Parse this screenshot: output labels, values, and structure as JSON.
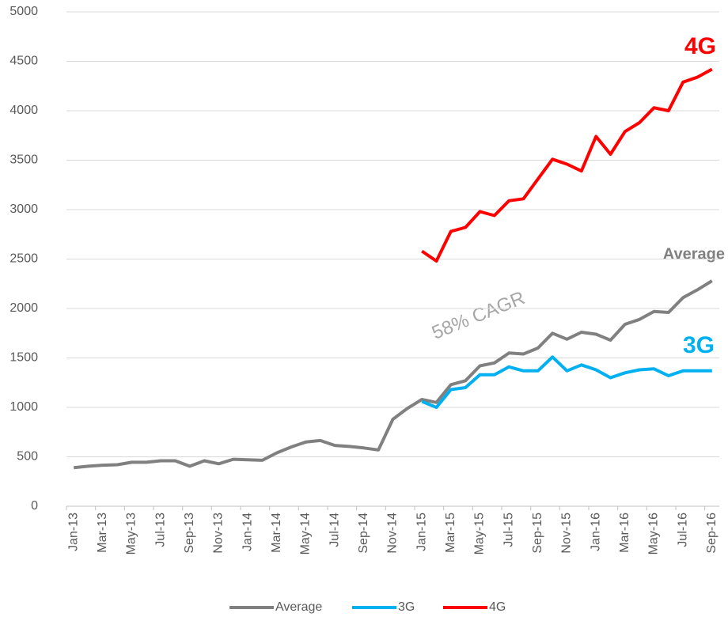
{
  "chart_data": {
    "type": "line",
    "categories": [
      "Jan-13",
      null,
      "Mar-13",
      null,
      "May-13",
      null,
      "Jul-13",
      null,
      "Sep-13",
      null,
      "Nov-13",
      null,
      "Jan-14",
      null,
      "Mar-14",
      null,
      "May-14",
      null,
      "Jul-14",
      null,
      "Sep-14",
      null,
      "Nov-14",
      null,
      "Jan-15",
      null,
      "Mar-15",
      null,
      "May-15",
      null,
      "Jul-15",
      null,
      "Sep-15",
      null,
      "Nov-15",
      null,
      "Jan-16",
      null,
      "Mar-16",
      null,
      "May-16",
      null,
      "Jul-16",
      null,
      "Sep-16"
    ],
    "series": [
      {
        "name": "Average",
        "color": "#808080",
        "values": [
          390,
          405,
          415,
          420,
          445,
          445,
          460,
          460,
          405,
          460,
          430,
          475,
          470,
          465,
          540,
          600,
          650,
          665,
          615,
          605,
          590,
          570,
          880,
          990,
          1080,
          1050,
          1230,
          1270,
          1420,
          1450,
          1550,
          1540,
          1600,
          1750,
          1690,
          1760,
          1740,
          1680,
          1840,
          1890,
          1970,
          1960,
          2110,
          2190,
          2280
        ]
      },
      {
        "name": "3G",
        "color": "#00b0f0",
        "values": [
          null,
          null,
          null,
          null,
          null,
          null,
          null,
          null,
          null,
          null,
          null,
          null,
          null,
          null,
          null,
          null,
          null,
          null,
          null,
          null,
          null,
          null,
          null,
          null,
          1060,
          1000,
          1180,
          1200,
          1330,
          1330,
          1410,
          1370,
          1370,
          1510,
          1370,
          1430,
          1380,
          1300,
          1350,
          1380,
          1390,
          1320,
          1370,
          1370,
          1370
        ]
      },
      {
        "name": "4G",
        "color": "#ff0000",
        "values": [
          null,
          null,
          null,
          null,
          null,
          null,
          null,
          null,
          null,
          null,
          null,
          null,
          null,
          null,
          null,
          null,
          null,
          null,
          null,
          null,
          null,
          null,
          null,
          null,
          2580,
          2480,
          2780,
          2820,
          2980,
          2940,
          3090,
          3110,
          3310,
          3510,
          3460,
          3390,
          3740,
          3560,
          3790,
          3880,
          4030,
          4000,
          4290,
          4340,
          4420
        ]
      }
    ],
    "annotations": [
      "4G",
      "Average",
      "3G",
      "58% CAGR"
    ],
    "ylim": [
      0,
      5000
    ],
    "yticks": [
      0,
      500,
      1000,
      1500,
      2000,
      2500,
      3000,
      3500,
      4000,
      4500,
      5000
    ],
    "grid": true,
    "legend": "bottom"
  }
}
